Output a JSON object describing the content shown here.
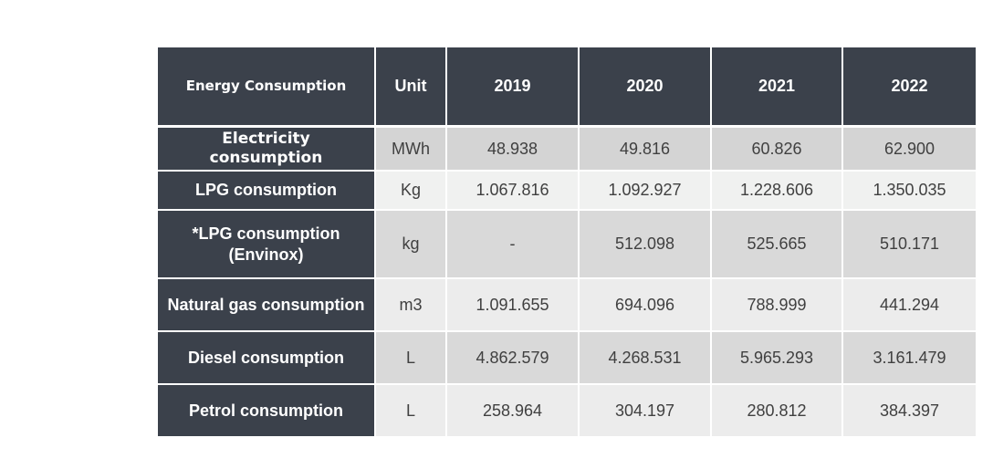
{
  "table": {
    "headers": [
      "Energy Consumption",
      "Unit",
      "2019",
      "2020",
      "2021",
      "2022"
    ],
    "rows": [
      {
        "label": "Electricity consumption",
        "unit": "MWh",
        "values": [
          "48.938",
          "49.816",
          "60.826",
          "62.900"
        ]
      },
      {
        "label": "LPG consumption",
        "unit": "Kg",
        "values": [
          "1.067.816",
          "1.092.927",
          "1.228.606",
          "1.350.035"
        ]
      },
      {
        "label": "*LPG consumption (Envinox)",
        "unit": "kg",
        "values": [
          "-",
          "512.098",
          "525.665",
          "510.171"
        ]
      },
      {
        "label": "Natural gas consumption",
        "unit": "m3",
        "values": [
          "1.091.655",
          "694.096",
          "788.999",
          "441.294"
        ]
      },
      {
        "label": "Diesel consumption",
        "unit": "L",
        "values": [
          "4.862.579",
          "4.268.531",
          "5.965.293",
          "3.161.479"
        ]
      },
      {
        "label": "Petrol consumption",
        "unit": "L",
        "values": [
          "258.964",
          "304.197",
          "280.812",
          "384.397"
        ]
      }
    ]
  },
  "colors": {
    "header_bg": "#3b414b",
    "cell_dark": "#d9d9d9",
    "cell_light": "#ececec"
  }
}
